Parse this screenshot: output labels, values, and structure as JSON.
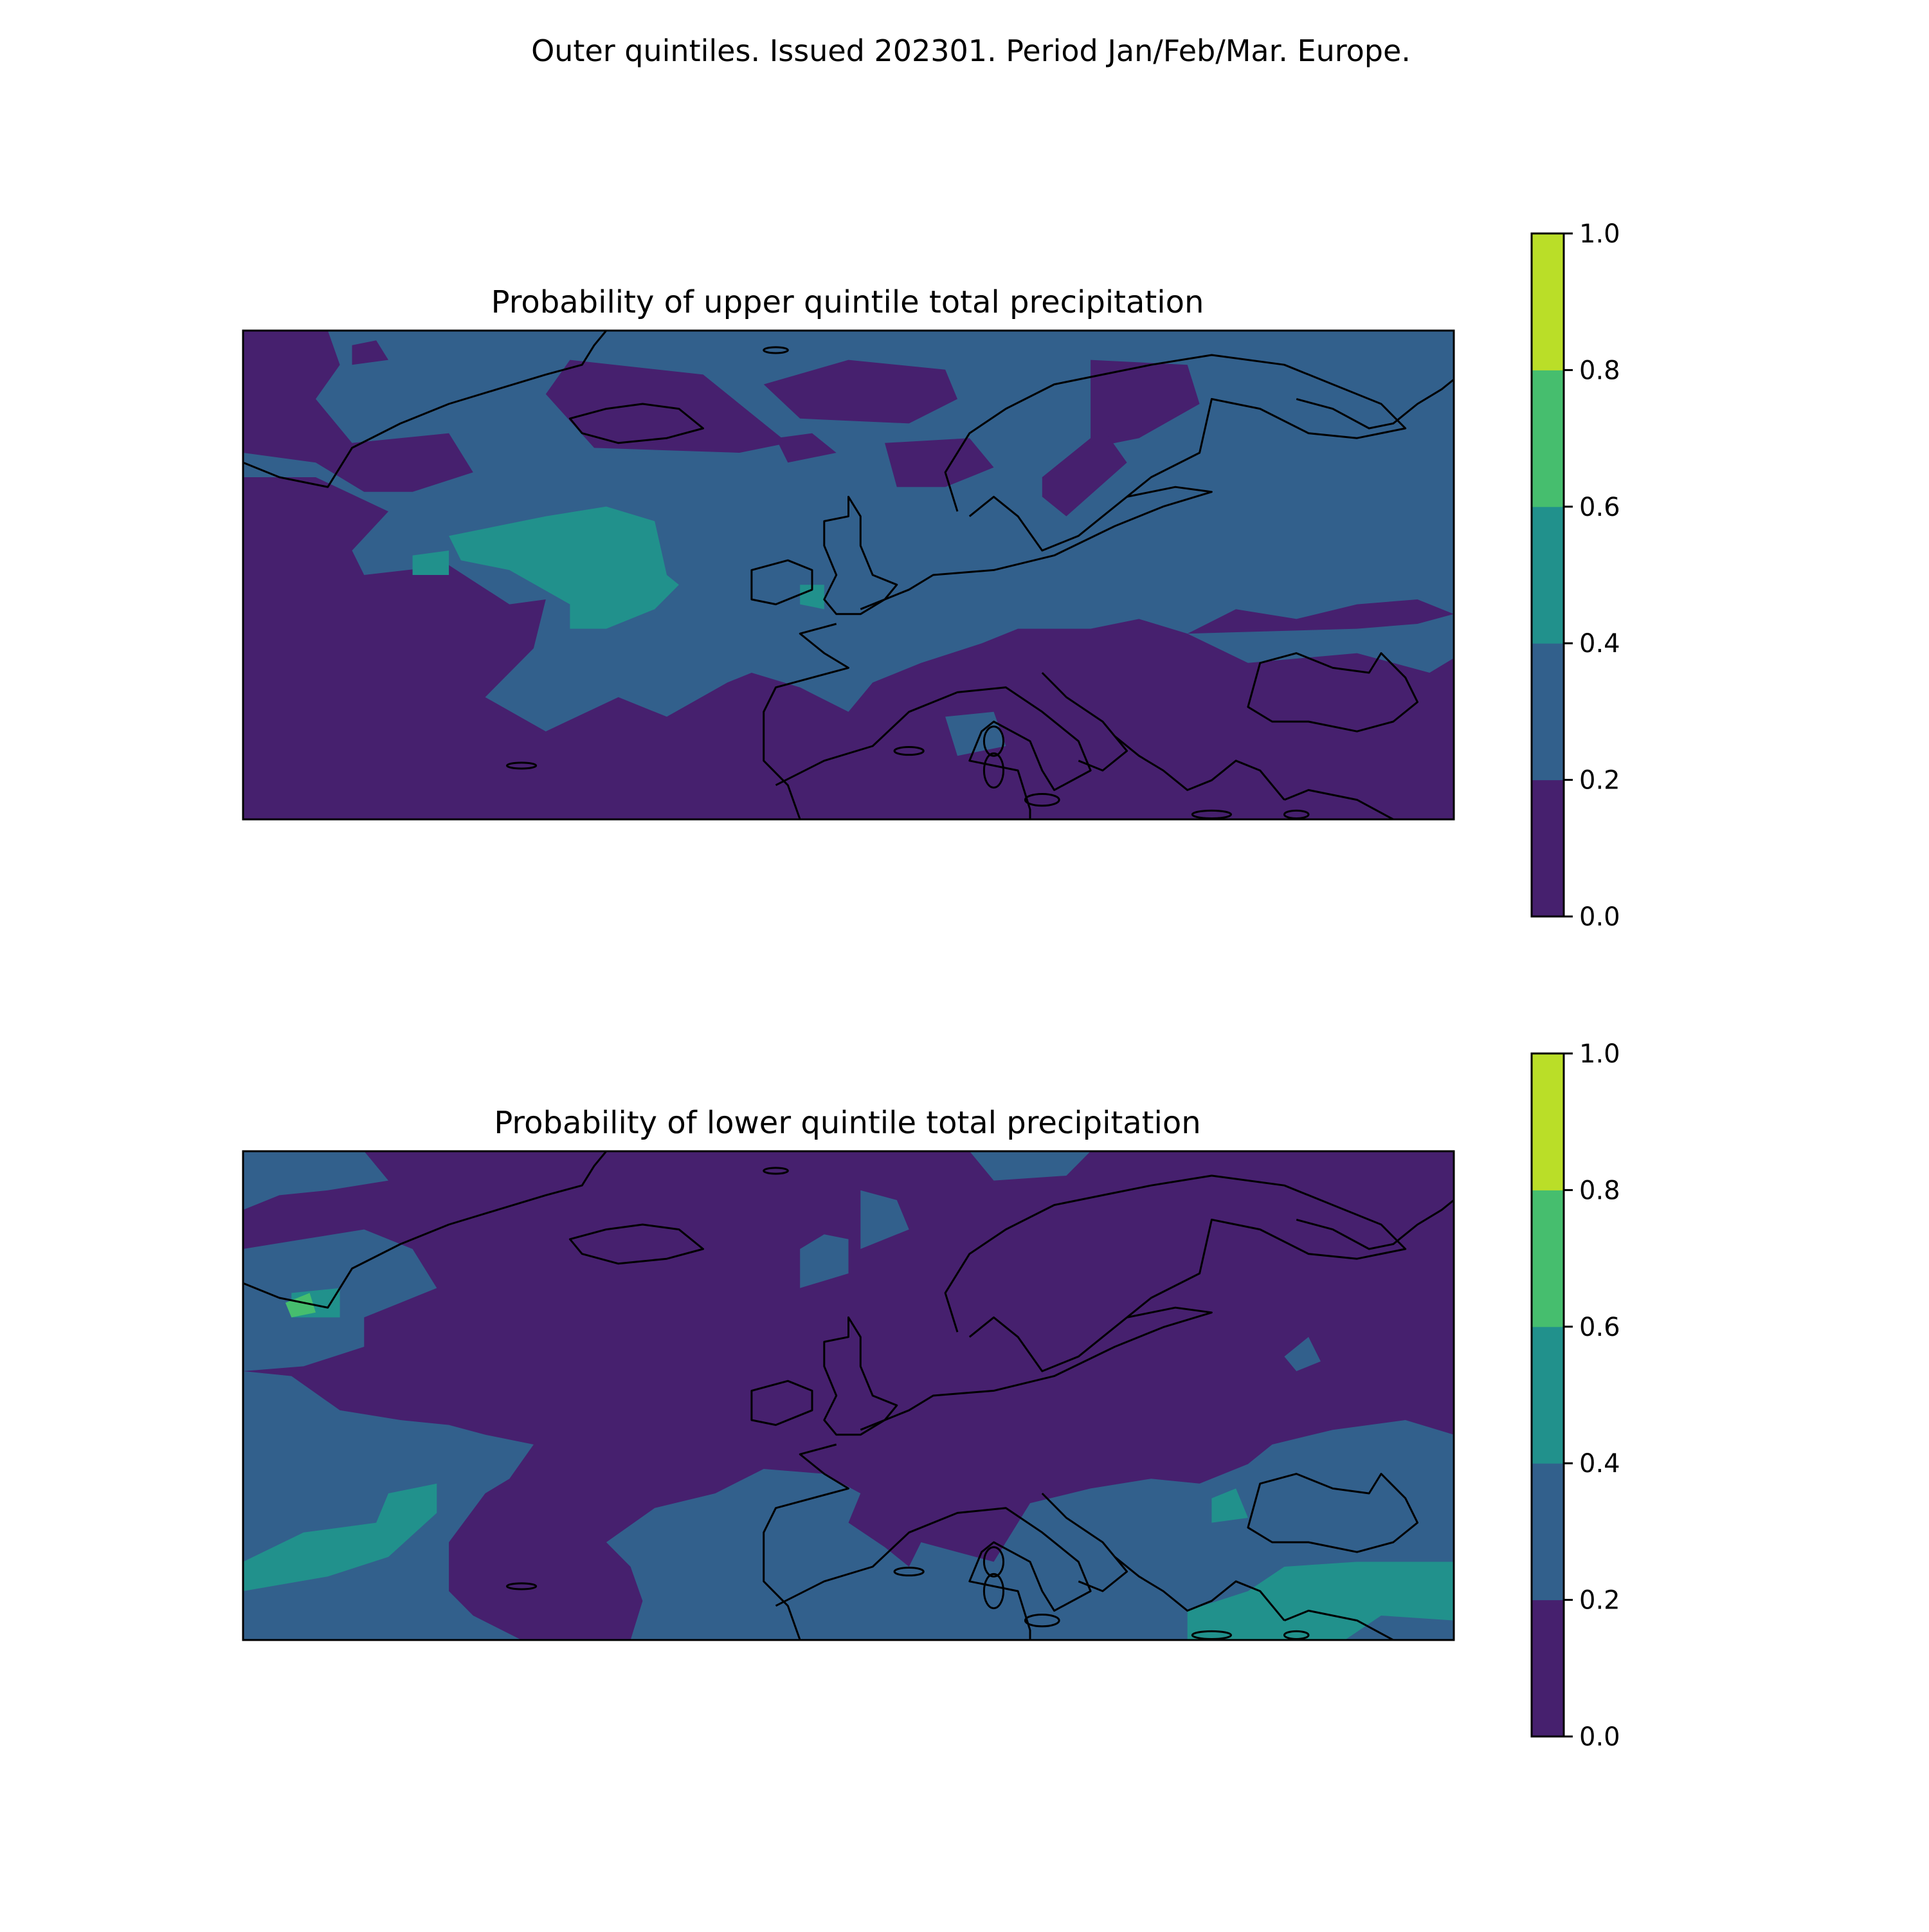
{
  "figure": {
    "suptitle": "Outer quintiles. Issued 202301. Period Jan/Feb/Mar. Europe."
  },
  "colormap": {
    "levels": [
      0.0,
      0.2,
      0.4,
      0.6,
      0.8,
      1.0
    ],
    "colors": [
      "#46206e",
      "#32608c",
      "#21918c",
      "#46be6e",
      "#bade28"
    ],
    "tick_labels": [
      "0.0",
      "0.2",
      "0.4",
      "0.6",
      "0.8",
      "1.0"
    ]
  },
  "coastline_color": "#000000",
  "panels": [
    {
      "title": "Probability of upper quintile total precipitation",
      "background_bin": 1,
      "regions": [
        {
          "bin": 0,
          "polys": [
            [
              [
                0,
                0
              ],
              [
                0.07,
                0
              ],
              [
                0.08,
                0.07
              ],
              [
                0.06,
                0.14
              ],
              [
                0.09,
                0.23
              ],
              [
                0.17,
                0.21
              ],
              [
                0.19,
                0.29
              ],
              [
                0.14,
                0.33
              ],
              [
                0.1,
                0.33
              ],
              [
                0.06,
                0.27
              ],
              [
                0,
                0.25
              ]
            ],
            [
              [
                0.09,
                0.03
              ],
              [
                0.11,
                0.02
              ],
              [
                0.12,
                0.06
              ],
              [
                0.09,
                0.07
              ]
            ],
            [
              [
                0.27,
                0.06
              ],
              [
                0.38,
                0.09
              ],
              [
                0.45,
                0.23
              ],
              [
                0.41,
                0.25
              ],
              [
                0.29,
                0.24
              ],
              [
                0.25,
                0.13
              ]
            ],
            [
              [
                0.43,
                0.11
              ],
              [
                0.5,
                0.06
              ],
              [
                0.58,
                0.08
              ],
              [
                0.59,
                0.14
              ],
              [
                0.55,
                0.19
              ],
              [
                0.46,
                0.18
              ]
            ],
            [
              [
                0.44,
                0.22
              ],
              [
                0.47,
                0.21
              ],
              [
                0.49,
                0.25
              ],
              [
                0.45,
                0.27
              ]
            ],
            [
              [
                0.53,
                0.23
              ],
              [
                0.6,
                0.22
              ],
              [
                0.62,
                0.28
              ],
              [
                0.58,
                0.32
              ],
              [
                0.54,
                0.32
              ]
            ],
            [
              [
                0.7,
                0.24
              ],
              [
                0.7,
                0.06
              ],
              [
                0.78,
                0.07
              ],
              [
                0.79,
                0.15
              ],
              [
                0.74,
                0.22
              ]
            ],
            [
              [
                0.66,
                0.3
              ],
              [
                0.71,
                0.2
              ],
              [
                0.73,
                0.27
              ],
              [
                0.68,
                0.38
              ],
              [
                0.66,
                0.34
              ]
            ],
            [
              [
                0.0,
                0.3
              ],
              [
                0.06,
                0.3
              ],
              [
                0.12,
                0.37
              ],
              [
                0.09,
                0.45
              ],
              [
                0.1,
                0.5
              ],
              [
                0.17,
                0.48
              ],
              [
                0.22,
                0.56
              ],
              [
                0.25,
                0.55
              ],
              [
                0.24,
                0.65
              ],
              [
                0.2,
                0.75
              ],
              [
                0.25,
                0.82
              ],
              [
                0.31,
                0.75
              ],
              [
                0.35,
                0.79
              ],
              [
                0.4,
                0.72
              ],
              [
                0.42,
                0.7
              ],
              [
                0.46,
                0.73
              ],
              [
                0.5,
                0.78
              ],
              [
                0.52,
                0.72
              ],
              [
                0.56,
                0.68
              ],
              [
                0.61,
                0.64
              ],
              [
                0.64,
                0.61
              ],
              [
                0.7,
                0.61
              ],
              [
                0.74,
                0.59
              ],
              [
                0.78,
                0.62
              ],
              [
                0.82,
                0.57
              ],
              [
                0.87,
                0.59
              ],
              [
                0.92,
                0.56
              ],
              [
                0.97,
                0.55
              ],
              [
                1.0,
                0.58
              ],
              [
                1.0,
                1.0
              ],
              [
                0.0,
                1.0
              ]
            ]
          ]
        },
        {
          "bin": 1,
          "polys": [
            [
              [
                0.58,
                0.79
              ],
              [
                0.62,
                0.78
              ],
              [
                0.63,
                0.85
              ],
              [
                0.59,
                0.87
              ]
            ],
            [
              [
                0.78,
                0.62
              ],
              [
                0.83,
                0.68
              ],
              [
                0.92,
                0.66
              ],
              [
                0.98,
                0.7
              ],
              [
                1.0,
                0.67
              ],
              [
                1.0,
                0.58
              ],
              [
                0.97,
                0.6
              ],
              [
                0.92,
                0.61
              ]
            ]
          ]
        },
        {
          "bin": 2,
          "polys": [
            [
              [
                0.17,
                0.42
              ],
              [
                0.25,
                0.38
              ],
              [
                0.3,
                0.36
              ],
              [
                0.34,
                0.39
              ],
              [
                0.35,
                0.5
              ],
              [
                0.36,
                0.52
              ],
              [
                0.34,
                0.57
              ],
              [
                0.3,
                0.61
              ],
              [
                0.27,
                0.61
              ],
              [
                0.27,
                0.56
              ],
              [
                0.22,
                0.49
              ],
              [
                0.18,
                0.47
              ]
            ],
            [
              [
                0.14,
                0.46
              ],
              [
                0.17,
                0.45
              ],
              [
                0.17,
                0.5
              ],
              [
                0.14,
                0.5
              ]
            ],
            [
              [
                0.46,
                0.52
              ],
              [
                0.48,
                0.52
              ],
              [
                0.48,
                0.57
              ],
              [
                0.46,
                0.56
              ]
            ]
          ]
        }
      ]
    },
    {
      "title": "Probability of lower quintile total precipitation",
      "background_bin": 0,
      "regions": [
        {
          "bin": 1,
          "polys": [
            [
              [
                0,
                0
              ],
              [
                0.1,
                0
              ],
              [
                0.12,
                0.06
              ],
              [
                0.07,
                0.08
              ],
              [
                0.03,
                0.09
              ],
              [
                0,
                0.12
              ]
            ],
            [
              [
                0.6,
                0
              ],
              [
                0.7,
                0
              ],
              [
                0.68,
                0.05
              ],
              [
                0.62,
                0.06
              ]
            ],
            [
              [
                0.0,
                0.2
              ],
              [
                0.05,
                0.18
              ],
              [
                0.1,
                0.16
              ],
              [
                0.14,
                0.2
              ],
              [
                0.16,
                0.28
              ],
              [
                0.1,
                0.34
              ],
              [
                0.1,
                0.4
              ],
              [
                0.05,
                0.44
              ],
              [
                0,
                0.45
              ]
            ],
            [
              [
                0.46,
                0.2
              ],
              [
                0.48,
                0.17
              ],
              [
                0.5,
                0.18
              ],
              [
                0.5,
                0.25
              ],
              [
                0.46,
                0.28
              ]
            ],
            [
              [
                0.51,
                0.08
              ],
              [
                0.54,
                0.1
              ],
              [
                0.55,
                0.16
              ],
              [
                0.51,
                0.2
              ]
            ],
            [
              [
                0.0,
                0.45
              ],
              [
                0.04,
                0.46
              ],
              [
                0.08,
                0.53
              ],
              [
                0.13,
                0.55
              ],
              [
                0.17,
                0.56
              ],
              [
                0.2,
                0.58
              ],
              [
                0.24,
                0.6
              ],
              [
                0.22,
                0.67
              ],
              [
                0.2,
                0.7
              ],
              [
                0.17,
                0.8
              ],
              [
                0.17,
                0.9
              ],
              [
                0.19,
                0.95
              ],
              [
                0.23,
                1.0
              ],
              [
                0.0,
                1.0
              ]
            ],
            [
              [
                0.3,
                0.8
              ],
              [
                0.34,
                0.73
              ],
              [
                0.39,
                0.7
              ],
              [
                0.43,
                0.65
              ],
              [
                0.48,
                0.66
              ],
              [
                0.51,
                0.7
              ],
              [
                0.5,
                0.76
              ],
              [
                0.53,
                0.81
              ],
              [
                0.55,
                0.85
              ],
              [
                0.56,
                0.8
              ],
              [
                0.59,
                0.82
              ],
              [
                0.62,
                0.84
              ],
              [
                0.65,
                0.72
              ],
              [
                0.7,
                0.69
              ],
              [
                0.75,
                0.67
              ],
              [
                0.79,
                0.68
              ],
              [
                0.83,
                0.64
              ],
              [
                0.85,
                0.6
              ],
              [
                0.9,
                0.57
              ],
              [
                0.96,
                0.55
              ],
              [
                1.0,
                0.58
              ],
              [
                1.0,
                1.0
              ],
              [
                0.32,
                1.0
              ],
              [
                0.33,
                0.92
              ],
              [
                0.32,
                0.85
              ]
            ],
            [
              [
                0.86,
                0.42
              ],
              [
                0.88,
                0.38
              ],
              [
                0.89,
                0.43
              ],
              [
                0.87,
                0.45
              ]
            ]
          ]
        },
        {
          "bin": 2,
          "polys": [
            [
              [
                0.0,
                0.84
              ],
              [
                0.05,
                0.78
              ],
              [
                0.11,
                0.76
              ],
              [
                0.12,
                0.7
              ],
              [
                0.16,
                0.68
              ],
              [
                0.16,
                0.74
              ],
              [
                0.12,
                0.83
              ],
              [
                0.07,
                0.87
              ],
              [
                0.0,
                0.9
              ]
            ],
            [
              [
                0.04,
                0.29
              ],
              [
                0.08,
                0.28
              ],
              [
                0.08,
                0.34
              ],
              [
                0.04,
                0.34
              ]
            ],
            [
              [
                0.8,
                0.71
              ],
              [
                0.82,
                0.69
              ],
              [
                0.83,
                0.75
              ],
              [
                0.8,
                0.76
              ]
            ],
            [
              [
                0.78,
                0.94
              ],
              [
                0.83,
                0.9
              ],
              [
                0.86,
                0.85
              ],
              [
                0.92,
                0.84
              ],
              [
                1.0,
                0.84
              ],
              [
                1.0,
                0.96
              ],
              [
                0.94,
                0.95
              ],
              [
                0.91,
                1.0
              ],
              [
                0.78,
                1.0
              ]
            ]
          ]
        },
        {
          "bin": 3,
          "polys": [
            [
              [
                0.035,
                0.31
              ],
              [
                0.055,
                0.29
              ],
              [
                0.06,
                0.33
              ],
              [
                0.04,
                0.34
              ]
            ]
          ]
        }
      ]
    }
  ]
}
